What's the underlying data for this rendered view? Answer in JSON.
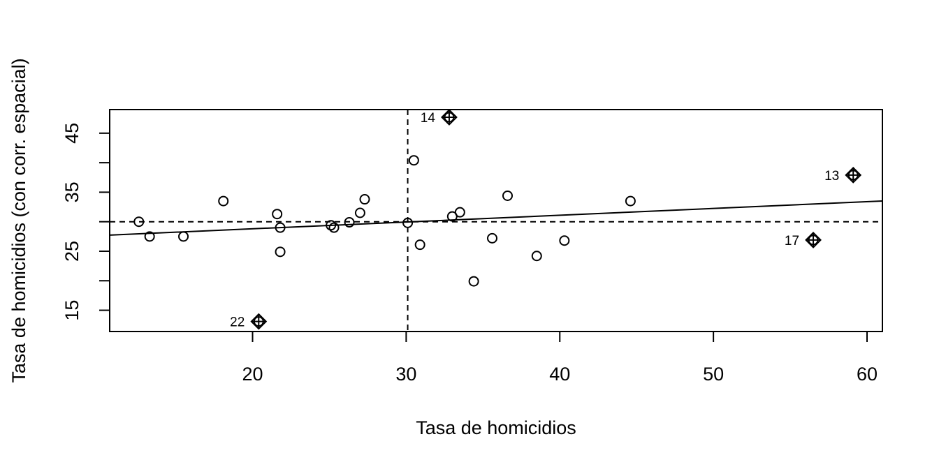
{
  "chart_data": {
    "type": "scatter",
    "title": "",
    "xlabel": "Tasa de homicidios",
    "ylabel": "Tasa de homicidios (con corr. espacial)",
    "xlim": [
      10.7,
      61.0
    ],
    "ylim": [
      11.4,
      49.0
    ],
    "x_ticks": [
      20,
      30,
      40,
      50,
      60
    ],
    "x_tick_labels": [
      "20",
      "30",
      "40",
      "50",
      "60"
    ],
    "y_ticks": [
      15,
      20,
      25,
      30,
      35,
      40,
      45
    ],
    "y_tick_labels": [
      "15",
      "",
      "25",
      "",
      "35",
      "",
      "45"
    ],
    "grid": false,
    "legend": "none",
    "mean_x": 30.1,
    "mean_y": 30.0,
    "regression_line": {
      "intercept": 26.5,
      "slope": 0.115
    },
    "points": [
      {
        "x": 12.6,
        "y": 30.0
      },
      {
        "x": 13.3,
        "y": 27.5
      },
      {
        "x": 15.5,
        "y": 27.5
      },
      {
        "x": 18.1,
        "y": 33.5
      },
      {
        "x": 21.6,
        "y": 31.3
      },
      {
        "x": 21.8,
        "y": 29.0
      },
      {
        "x": 21.8,
        "y": 24.9
      },
      {
        "x": 25.1,
        "y": 29.4
      },
      {
        "x": 25.3,
        "y": 29.0
      },
      {
        "x": 26.3,
        "y": 29.9
      },
      {
        "x": 27.0,
        "y": 31.5
      },
      {
        "x": 27.3,
        "y": 33.8
      },
      {
        "x": 30.1,
        "y": 29.8
      },
      {
        "x": 30.5,
        "y": 40.4
      },
      {
        "x": 30.9,
        "y": 26.1
      },
      {
        "x": 33.0,
        "y": 30.9
      },
      {
        "x": 33.5,
        "y": 31.6
      },
      {
        "x": 34.4,
        "y": 19.9
      },
      {
        "x": 35.6,
        "y": 27.2
      },
      {
        "x": 36.6,
        "y": 34.4
      },
      {
        "x": 38.5,
        "y": 24.2
      },
      {
        "x": 40.3,
        "y": 26.8
      },
      {
        "x": 44.6,
        "y": 33.5
      }
    ],
    "influential_points": [
      {
        "x": 32.8,
        "y": 47.7,
        "label": "14"
      },
      {
        "x": 59.1,
        "y": 37.9,
        "label": "13"
      },
      {
        "x": 56.5,
        "y": 26.9,
        "label": "17"
      },
      {
        "x": 20.4,
        "y": 13.1,
        "label": "22"
      }
    ]
  }
}
